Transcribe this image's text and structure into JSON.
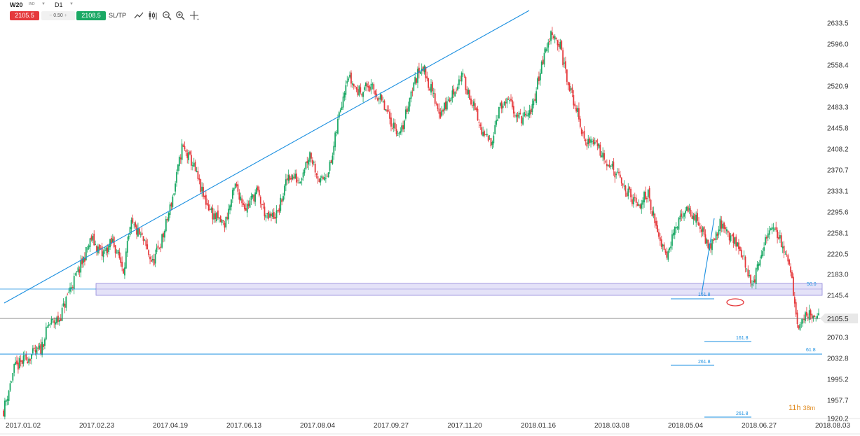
{
  "toolbar": {
    "symbol": "W20",
    "symbol_sub": "IND",
    "timeframe": "D1",
    "sell_price": "2105.5",
    "spread": "0.50",
    "buy_price": "2108.5",
    "sltp_label": "SL/TP",
    "tools": [
      "line-chart-icon",
      "candlestick-icon",
      "zoom-out-icon",
      "zoom-in-icon",
      "crosshair-icon"
    ]
  },
  "timer": {
    "hours": "11h",
    "minutes": "38m"
  },
  "colors": {
    "up": "#1aa864",
    "down": "#e5393c",
    "trendline": "#1a8fe0",
    "zone": "#d9d6f5"
  },
  "chart_data": {
    "type": "candlestick",
    "y_ticks": [
      "2633.5",
      "2596.0",
      "2558.4",
      "2520.9",
      "2483.3",
      "2445.8",
      "2408.2",
      "2370.7",
      "2333.1",
      "2295.6",
      "2258.1",
      "2220.5",
      "2183.0",
      "2145.4",
      "2105.5",
      "2070.3",
      "2032.8",
      "1995.2",
      "1957.7",
      "1920.2"
    ],
    "x_ticks": [
      "2017.01.02",
      "2017.02.23",
      "2017.04.19",
      "2017.06.13",
      "2017.08.04",
      "2017.09.27",
      "2017.11.20",
      "2018.01.16",
      "2018.03.08",
      "2018.05.04",
      "2018.06.27",
      "2018.08.03"
    ],
    "ylim": [
      1920.2,
      2640
    ],
    "current_price": "2105.5",
    "fib_labels": [
      "50.0",
      "161.8",
      "161.8",
      "61.8",
      "261.8",
      "261.8"
    ],
    "close_path": [
      [
        0,
        1935
      ],
      [
        8,
        2010
      ],
      [
        18,
        2030
      ],
      [
        28,
        2045
      ],
      [
        34,
        2090
      ],
      [
        42,
        2100
      ],
      [
        50,
        2155
      ],
      [
        58,
        2195
      ],
      [
        66,
        2245
      ],
      [
        74,
        2215
      ],
      [
        82,
        2240
      ],
      [
        90,
        2190
      ],
      [
        96,
        2270
      ],
      [
        104,
        2245
      ],
      [
        112,
        2200
      ],
      [
        120,
        2250
      ],
      [
        128,
        2330
      ],
      [
        134,
        2410
      ],
      [
        142,
        2380
      ],
      [
        150,
        2320
      ],
      [
        158,
        2285
      ],
      [
        166,
        2270
      ],
      [
        174,
        2340
      ],
      [
        182,
        2300
      ],
      [
        190,
        2330
      ],
      [
        198,
        2280
      ],
      [
        206,
        2290
      ],
      [
        214,
        2360
      ],
      [
        222,
        2350
      ],
      [
        230,
        2400
      ],
      [
        238,
        2345
      ],
      [
        246,
        2380
      ],
      [
        252,
        2470
      ],
      [
        258,
        2540
      ],
      [
        266,
        2510
      ],
      [
        274,
        2520
      ],
      [
        282,
        2500
      ],
      [
        290,
        2460
      ],
      [
        298,
        2430
      ],
      [
        306,
        2510
      ],
      [
        314,
        2560
      ],
      [
        320,
        2520
      ],
      [
        328,
        2470
      ],
      [
        336,
        2500
      ],
      [
        344,
        2540
      ],
      [
        352,
        2490
      ],
      [
        360,
        2430
      ],
      [
        366,
        2420
      ],
      [
        372,
        2480
      ],
      [
        380,
        2490
      ],
      [
        388,
        2460
      ],
      [
        396,
        2470
      ],
      [
        404,
        2560
      ],
      [
        412,
        2620
      ],
      [
        418,
        2590
      ],
      [
        424,
        2520
      ],
      [
        430,
        2480
      ],
      [
        436,
        2420
      ],
      [
        444,
        2420
      ],
      [
        452,
        2390
      ],
      [
        460,
        2360
      ],
      [
        468,
        2330
      ],
      [
        476,
        2300
      ],
      [
        484,
        2330
      ],
      [
        490,
        2260
      ],
      [
        498,
        2220
      ],
      [
        506,
        2270
      ],
      [
        514,
        2300
      ],
      [
        522,
        2270
      ],
      [
        530,
        2230
      ],
      [
        538,
        2270
      ],
      [
        546,
        2250
      ],
      [
        554,
        2220
      ],
      [
        562,
        2160
      ],
      [
        570,
        2220
      ],
      [
        576,
        2270
      ],
      [
        584,
        2240
      ],
      [
        590,
        2200
      ],
      [
        596,
        2090
      ],
      [
        604,
        2110
      ],
      [
        612,
        2105.5
      ]
    ]
  }
}
